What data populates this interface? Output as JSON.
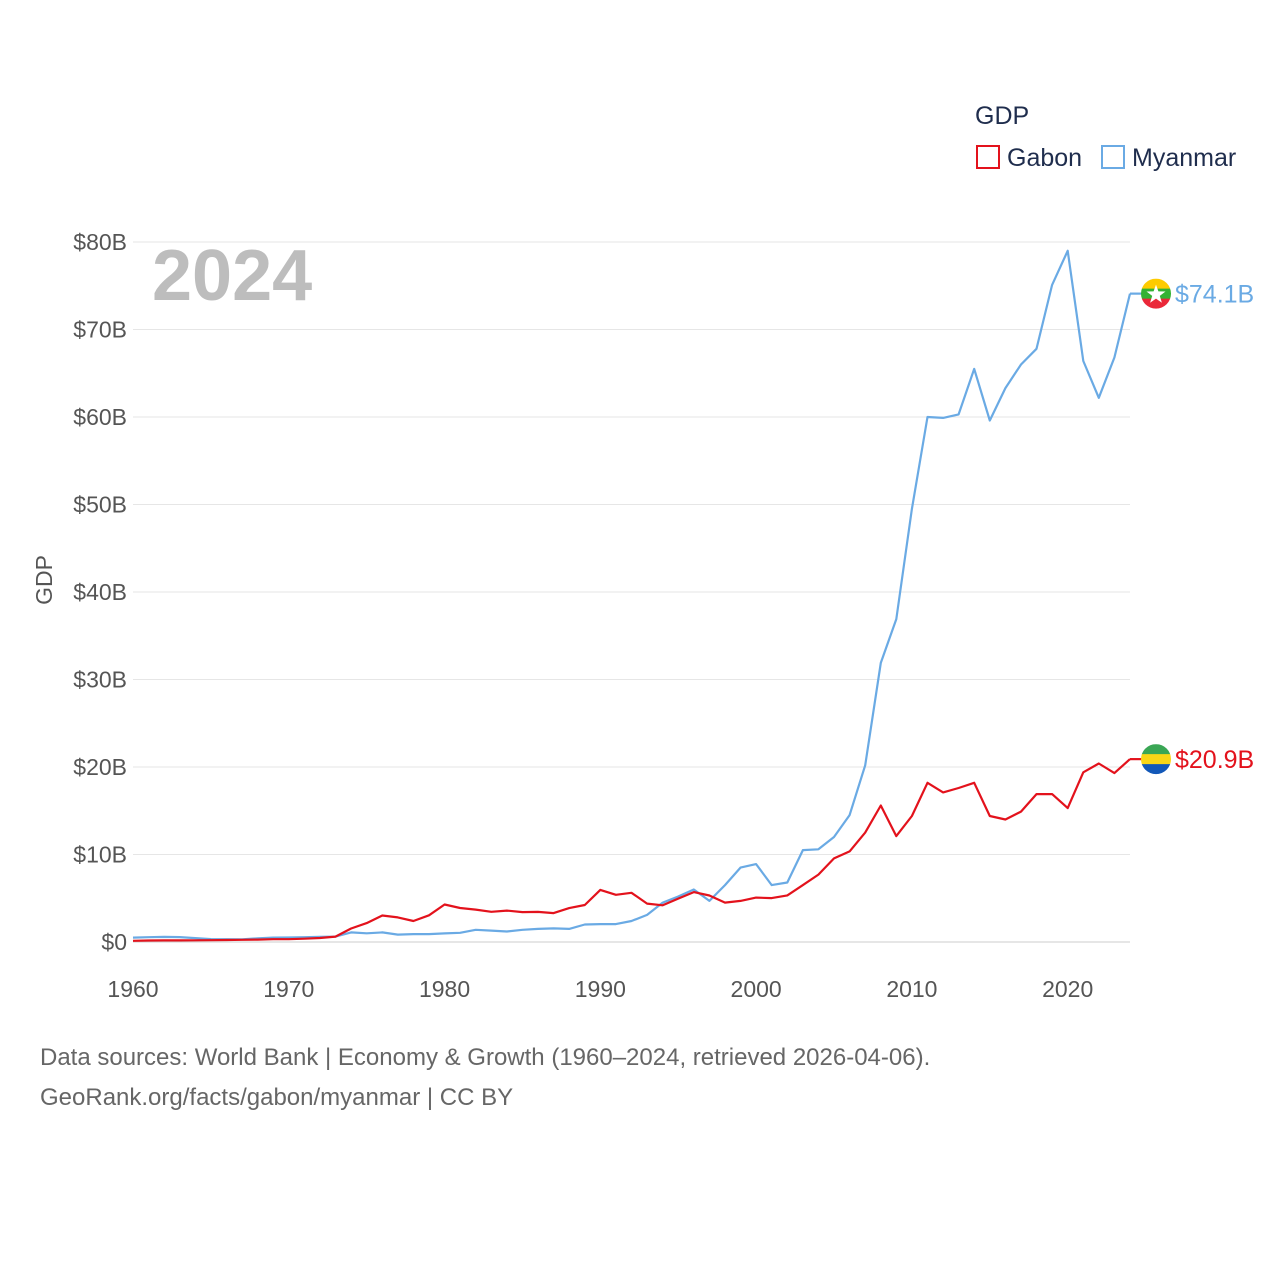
{
  "legend": {
    "title": "GDP"
  },
  "year_label": "2024",
  "sources": {
    "line1": "Data sources: World Bank | Economy & Growth (1960–2024, retrieved 2026-04-06).",
    "line2": "GeoRank.org/facts/gabon/myanmar | CC BY"
  },
  "chart_data": {
    "type": "line",
    "title": "GDP",
    "xlabel": "",
    "ylabel": "GDP",
    "xlim": [
      1960,
      2024
    ],
    "ylim": [
      0,
      80
    ],
    "y_unit": "billion USD",
    "x_ticks": [
      "1960",
      "1970",
      "1980",
      "1990",
      "2000",
      "2010",
      "2020"
    ],
    "y_ticks": [
      "$0",
      "$10B",
      "$20B",
      "$30B",
      "$40B",
      "$50B",
      "$60B",
      "$70B",
      "$80B"
    ],
    "x": [
      1960,
      1961,
      1962,
      1963,
      1964,
      1965,
      1966,
      1967,
      1968,
      1969,
      1970,
      1971,
      1972,
      1973,
      1974,
      1975,
      1976,
      1977,
      1978,
      1979,
      1980,
      1981,
      1982,
      1983,
      1984,
      1985,
      1986,
      1987,
      1988,
      1989,
      1990,
      1991,
      1992,
      1993,
      1994,
      1995,
      1996,
      1997,
      1998,
      1999,
      2000,
      2001,
      2002,
      2003,
      2004,
      2005,
      2006,
      2007,
      2008,
      2009,
      2010,
      2011,
      2012,
      2013,
      2014,
      2015,
      2016,
      2017,
      2018,
      2019,
      2020,
      2021,
      2022,
      2023,
      2024
    ],
    "series": [
      {
        "name": "Gabon",
        "color": "#e3121c",
        "end_label": "$20.9B",
        "flag": "gabon-flag-icon",
        "values": [
          0.14,
          0.17,
          0.18,
          0.18,
          0.19,
          0.21,
          0.23,
          0.25,
          0.27,
          0.32,
          0.32,
          0.38,
          0.46,
          0.62,
          1.54,
          2.16,
          3.03,
          2.81,
          2.4,
          3.05,
          4.28,
          3.89,
          3.7,
          3.45,
          3.59,
          3.42,
          3.44,
          3.3,
          3.87,
          4.23,
          5.95,
          5.4,
          5.62,
          4.39,
          4.19,
          4.96,
          5.7,
          5.32,
          4.5,
          4.7,
          5.07,
          5.02,
          5.33,
          6.5,
          7.7,
          9.55,
          10.35,
          12.5,
          15.6,
          12.1,
          14.4,
          18.2,
          17.1,
          17.6,
          18.2,
          14.4,
          14.0,
          14.9,
          16.9,
          16.9,
          15.3,
          19.4,
          20.4,
          19.3,
          20.9
        ]
      },
      {
        "name": "Myanmar",
        "color": "#6aaae4",
        "end_label": "$74.1B",
        "flag": "myanmar-flag-icon",
        "values": [
          0.5,
          0.55,
          0.58,
          0.56,
          0.45,
          0.33,
          0.32,
          0.3,
          0.42,
          0.5,
          0.51,
          0.55,
          0.58,
          0.62,
          1.1,
          1.0,
          1.1,
          0.85,
          0.9,
          0.9,
          0.98,
          1.05,
          1.4,
          1.3,
          1.2,
          1.4,
          1.5,
          1.55,
          1.5,
          2.0,
          2.05,
          2.05,
          2.4,
          3.1,
          4.5,
          5.2,
          6.0,
          4.7,
          6.5,
          8.5,
          8.9,
          6.5,
          6.8,
          10.5,
          10.6,
          12.0,
          14.5,
          20.2,
          31.9,
          36.9,
          49.5,
          60.0,
          59.9,
          60.3,
          65.5,
          59.6,
          63.3,
          66.0,
          67.8,
          75.1,
          79.0,
          66.4,
          62.2,
          66.8,
          74.1
        ]
      }
    ]
  }
}
